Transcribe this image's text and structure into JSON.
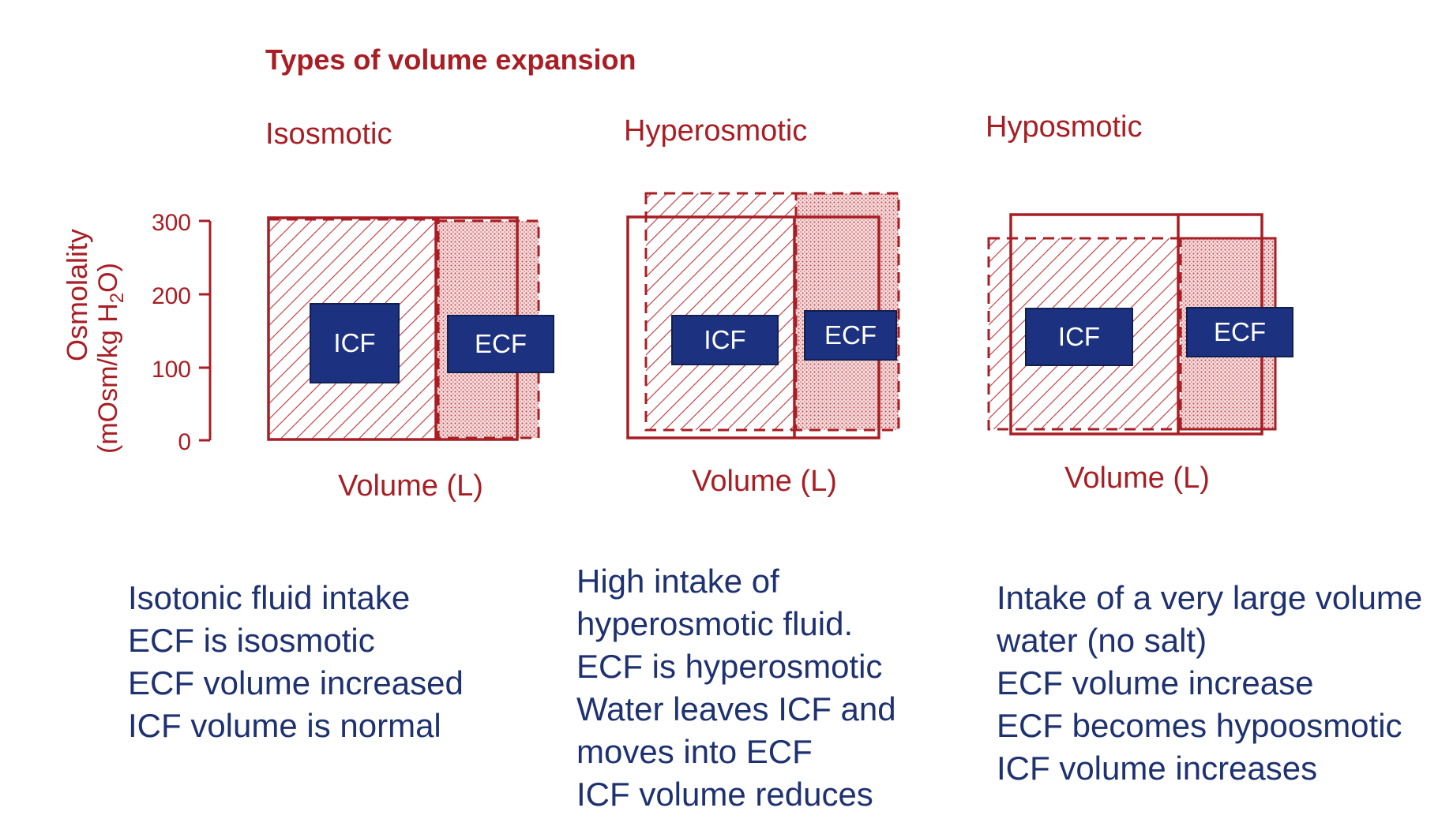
{
  "title": "Types of volume expansion",
  "y_axis": {
    "label_line1": "Osmolality",
    "label_line2": "(mOsm/kg H",
    "label_sub": "2",
    "label_tail": "O)",
    "ticks": [
      "300",
      "200",
      "100",
      "0"
    ]
  },
  "panels": [
    {
      "name": "Isosmotic",
      "xlabel": "Volume (L)",
      "icf_label": "ICF",
      "ecf_label": "ECF",
      "description": [
        "Isotonic fluid intake",
        "ECF is isosmotic",
        "ECF volume increased",
        "ICF volume is normal"
      ]
    },
    {
      "name": "Hyperosmotic",
      "xlabel": "Volume (L)",
      "icf_label": "ICF",
      "ecf_label": "ECF",
      "description": [
        "High intake of",
        "hyperosmotic fluid.",
        "ECF is hyperosmotic",
        "Water leaves ICF and",
        "moves into ECF",
        "ICF volume reduces"
      ]
    },
    {
      "name": "Hyposmotic",
      "xlabel": "Volume (L)",
      "icf_label": "ICF",
      "ecf_label": "ECF",
      "description": [
        "Intake of a very large volume",
        "water (no salt)",
        "ECF volume increase",
        "ECF becomes hypoosmotic",
        "ICF volume increases"
      ]
    }
  ],
  "colors": {
    "diagram_red": "#a81e24",
    "label_fill": "#1c3280",
    "text_blue": "#1e3170"
  }
}
